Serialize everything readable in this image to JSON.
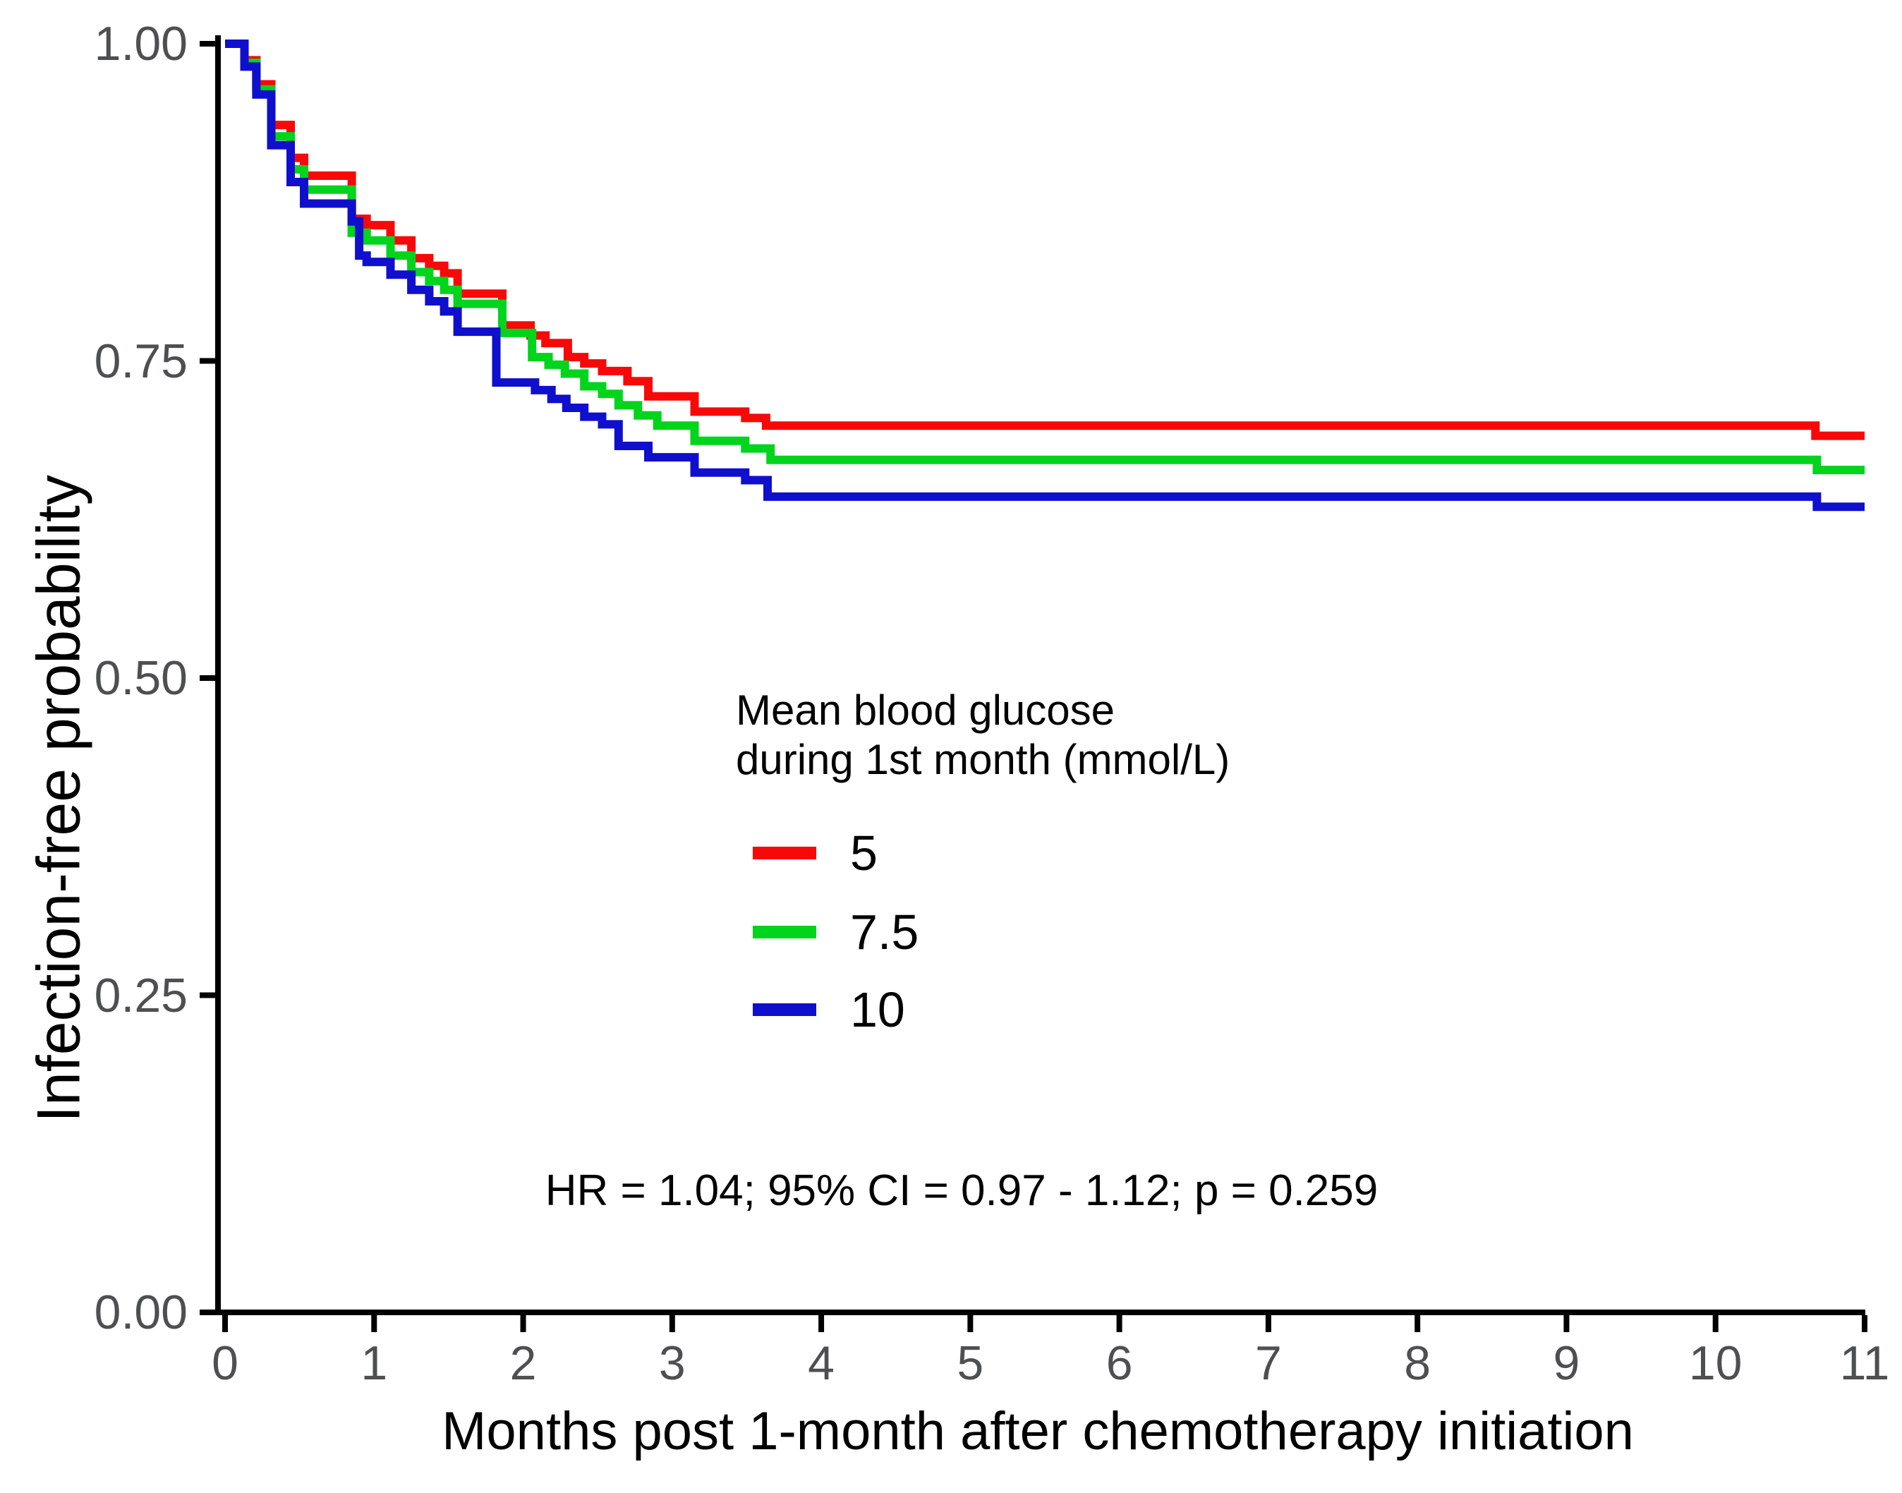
{
  "figure": {
    "y_axis": {
      "title": "Infection-free probability",
      "tick_labels": [
        "1.00",
        "0.75",
        "0.50",
        "0.25",
        "0.00"
      ],
      "tick_values": [
        1.0,
        0.75,
        0.5,
        0.25,
        0.0
      ]
    },
    "x_axis": {
      "title": "Months post 1-month after chemotherapy initiation",
      "tick_labels": [
        "0",
        "1",
        "2",
        "3",
        "4",
        "5",
        "6",
        "7",
        "8",
        "9",
        "10",
        "11"
      ],
      "tick_values": [
        0,
        1,
        2,
        3,
        4,
        5,
        6,
        7,
        8,
        9,
        10,
        11
      ]
    },
    "legend": {
      "title_lines": [
        "Mean blood glucose",
        "during 1st month (mmol/L)"
      ],
      "items": [
        {
          "label": "5",
          "color": "#f80909"
        },
        {
          "label": "7.5",
          "color": "#00d41c"
        },
        {
          "label": "10",
          "color": "#0f0fcd"
        }
      ]
    },
    "annotation": "HR = 1.04; 95% CI = 0.97 - 1.12; p = 0.259",
    "colors": {
      "axis": "#000000",
      "tick_label": "#4e4f51",
      "text": "#000000",
      "background": "#ffffff"
    }
  },
  "chart_data": {
    "type": "line",
    "subtype": "kaplan-meier-step",
    "title": "",
    "xlabel": "Months post 1-month after chemotherapy initiation",
    "ylabel": "Infection-free probability",
    "xlim": [
      0,
      11
    ],
    "ylim": [
      0,
      1
    ],
    "x_ticks": [
      0,
      1,
      2,
      3,
      4,
      5,
      6,
      7,
      8,
      9,
      10,
      11
    ],
    "y_ticks": [
      0.0,
      0.25,
      0.5,
      0.75,
      1.0
    ],
    "grid": false,
    "legend_title": "Mean blood glucose during 1st month (mmol/L)",
    "legend_position": "center",
    "annotation": "HR = 1.04; 95% CI = 0.97 - 1.12; p = 0.259",
    "series": [
      {
        "name": "5",
        "color": "#f80909",
        "points": [
          [
            0,
            1.0
          ],
          [
            0.13,
            0.987
          ],
          [
            0.21,
            0.968
          ],
          [
            0.31,
            0.936
          ],
          [
            0.44,
            0.91
          ],
          [
            0.53,
            0.896
          ],
          [
            0.85,
            0.862
          ],
          [
            0.95,
            0.857
          ],
          [
            1.11,
            0.845
          ],
          [
            1.25,
            0.831
          ],
          [
            1.37,
            0.825
          ],
          [
            1.47,
            0.819
          ],
          [
            1.56,
            0.803
          ],
          [
            1.86,
            0.778
          ],
          [
            2.05,
            0.77
          ],
          [
            2.15,
            0.764
          ],
          [
            2.3,
            0.753
          ],
          [
            2.41,
            0.748
          ],
          [
            2.53,
            0.742
          ],
          [
            2.7,
            0.734
          ],
          [
            2.84,
            0.722
          ],
          [
            3.15,
            0.71
          ],
          [
            3.49,
            0.705
          ],
          [
            3.63,
            0.699
          ],
          [
            10.67,
            0.691
          ],
          [
            11,
            0.691
          ]
        ]
      },
      {
        "name": "7.5",
        "color": "#00d41c",
        "points": [
          [
            0,
            1.0
          ],
          [
            0.13,
            0.985
          ],
          [
            0.21,
            0.964
          ],
          [
            0.31,
            0.927
          ],
          [
            0.44,
            0.901
          ],
          [
            0.53,
            0.885
          ],
          [
            0.85,
            0.851
          ],
          [
            0.95,
            0.845
          ],
          [
            1.11,
            0.833
          ],
          [
            1.25,
            0.82
          ],
          [
            1.37,
            0.813
          ],
          [
            1.47,
            0.806
          ],
          [
            1.56,
            0.795
          ],
          [
            1.86,
            0.772
          ],
          [
            2.06,
            0.753
          ],
          [
            2.17,
            0.747
          ],
          [
            2.28,
            0.74
          ],
          [
            2.41,
            0.73
          ],
          [
            2.53,
            0.724
          ],
          [
            2.64,
            0.715
          ],
          [
            2.77,
            0.707
          ],
          [
            2.9,
            0.699
          ],
          [
            3.15,
            0.687
          ],
          [
            3.49,
            0.681
          ],
          [
            3.66,
            0.672
          ],
          [
            10.68,
            0.664
          ],
          [
            11,
            0.664
          ]
        ]
      },
      {
        "name": "10",
        "color": "#0f0fcd",
        "points": [
          [
            0,
            1.0
          ],
          [
            0.13,
            0.982
          ],
          [
            0.21,
            0.96
          ],
          [
            0.31,
            0.92
          ],
          [
            0.44,
            0.891
          ],
          [
            0.53,
            0.874
          ],
          [
            0.85,
            0.86
          ],
          [
            0.9,
            0.833
          ],
          [
            0.95,
            0.828
          ],
          [
            1.11,
            0.818
          ],
          [
            1.25,
            0.806
          ],
          [
            1.37,
            0.797
          ],
          [
            1.47,
            0.789
          ],
          [
            1.56,
            0.773
          ],
          [
            1.82,
            0.733
          ],
          [
            2.08,
            0.727
          ],
          [
            2.19,
            0.72
          ],
          [
            2.29,
            0.713
          ],
          [
            2.41,
            0.706
          ],
          [
            2.53,
            0.7
          ],
          [
            2.64,
            0.683
          ],
          [
            2.84,
            0.674
          ],
          [
            3.15,
            0.662
          ],
          [
            3.49,
            0.656
          ],
          [
            3.64,
            0.643
          ],
          [
            10.68,
            0.635
          ],
          [
            11,
            0.635
          ]
        ]
      }
    ]
  }
}
